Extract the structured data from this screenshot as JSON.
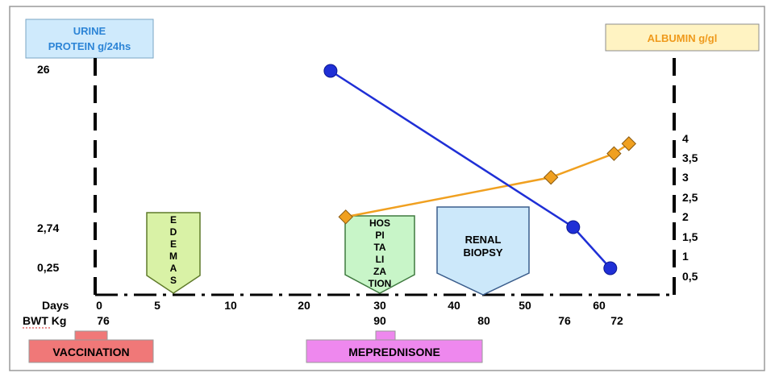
{
  "chart_data": {
    "type": "line",
    "left_axis": {
      "title_line1": "URINE",
      "title_line2": "PROTEIN g/24hs",
      "ticks": [
        "26",
        "2,74",
        "0,25"
      ],
      "points": [
        [
          23.5,
          26
        ],
        [
          56.5,
          2.74
        ],
        [
          61.5,
          0.25
        ]
      ],
      "color": "#1f2fd6"
    },
    "right_axis": {
      "title": "ALBUMIN g/gl",
      "ticks": [
        "4",
        "3,5",
        "3",
        "2,5",
        "2",
        "1,5",
        "1",
        "0,5"
      ],
      "points": [
        [
          25.5,
          2.0
        ],
        [
          53.5,
          3.0
        ],
        [
          62,
          3.6
        ],
        [
          64,
          3.85
        ]
      ],
      "color": "#f0a020"
    },
    "x_axis": {
      "days_label": "Days",
      "days_ticks": [
        "0",
        "5",
        "10",
        "20",
        "30",
        "40",
        "50",
        "60"
      ],
      "bwt_label": "BWT Kg",
      "bwt_values": [
        "76",
        "90",
        "80",
        "76",
        "72"
      ]
    },
    "events": [
      {
        "label_lines": [
          "E",
          "D",
          "E",
          "M",
          "A",
          "S"
        ],
        "color": "#d9f2a6"
      },
      {
        "label_lines": [
          "HOS",
          "PI",
          "TA",
          "LI",
          "ZA",
          "TION"
        ],
        "color": "#c8f5c8"
      },
      {
        "label_lines": [
          "RENAL",
          "BIOPSY"
        ],
        "color": "#cce8fa"
      }
    ],
    "annotations": [
      {
        "label": "VACCINATION",
        "color": "#f07878"
      },
      {
        "label": "MEPREDNISONE",
        "color": "#ee88ee"
      }
    ]
  }
}
